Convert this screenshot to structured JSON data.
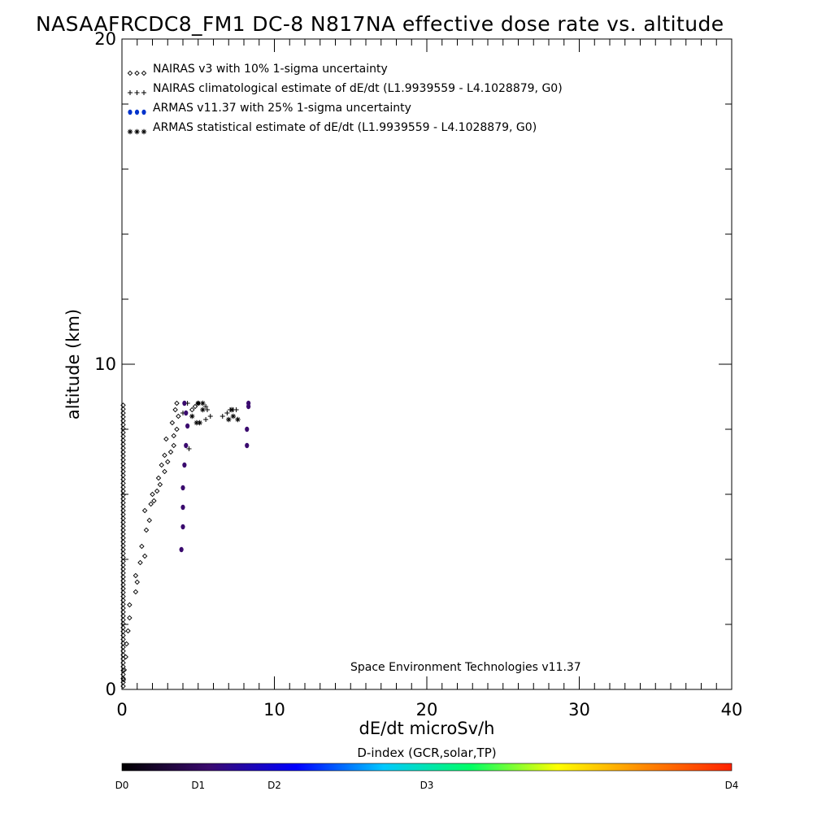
{
  "chart_data": {
    "type": "scatter",
    "title": "NASAAFRCDC8_FM1 DC-8   N817NA effective dose rate vs. altitude",
    "xlabel": "dE/dt microSv/h",
    "ylabel": "altitude (km)",
    "xlim": [
      0,
      40
    ],
    "ylim": [
      0,
      20
    ],
    "x_ticks": [
      "0",
      "10",
      "20",
      "30",
      "40"
    ],
    "y_ticks": [
      "0",
      "10",
      "20"
    ],
    "legend_position": "top-left",
    "grid": false,
    "footer": "Space Environment Technologies v11.37",
    "series": [
      {
        "name": "NAIRAS v3 with 10% 1-sigma uncertainty",
        "marker": "diamond",
        "color": "#000000",
        "points": [
          [
            0.1,
            0.3
          ],
          [
            0.15,
            0.6
          ],
          [
            0.25,
            1.0
          ],
          [
            0.3,
            1.4
          ],
          [
            0.4,
            1.8
          ],
          [
            0.5,
            2.2
          ],
          [
            0.5,
            2.6
          ],
          [
            0.9,
            3.0
          ],
          [
            1.0,
            3.3
          ],
          [
            0.9,
            3.5
          ],
          [
            1.2,
            3.9
          ],
          [
            1.5,
            4.1
          ],
          [
            1.3,
            4.4
          ],
          [
            1.6,
            4.9
          ],
          [
            1.8,
            5.2
          ],
          [
            1.5,
            5.5
          ],
          [
            1.9,
            5.7
          ],
          [
            2.1,
            5.8
          ],
          [
            2.0,
            6.0
          ],
          [
            2.3,
            6.1
          ],
          [
            2.5,
            6.3
          ],
          [
            2.4,
            6.5
          ],
          [
            2.8,
            6.7
          ],
          [
            2.6,
            6.9
          ],
          [
            3.0,
            7.0
          ],
          [
            2.8,
            7.2
          ],
          [
            3.2,
            7.3
          ],
          [
            3.4,
            7.5
          ],
          [
            2.9,
            7.7
          ],
          [
            3.4,
            7.8
          ],
          [
            3.6,
            8.0
          ],
          [
            3.3,
            8.2
          ],
          [
            3.7,
            8.4
          ],
          [
            3.5,
            8.6
          ],
          [
            3.6,
            8.8
          ],
          [
            4.6,
            8.6
          ],
          [
            4.8,
            8.7
          ],
          [
            5.0,
            8.8
          ]
        ]
      },
      {
        "name": "NAIRAS climatological estimate of dE/dt (L1.9939559 - L4.1028879, G0)",
        "marker": "plus",
        "color": "#000000",
        "points": [
          [
            4.0,
            8.5
          ],
          [
            4.3,
            8.8
          ],
          [
            4.4,
            7.4
          ],
          [
            5.5,
            8.3
          ],
          [
            5.5,
            8.7
          ],
          [
            5.6,
            8.6
          ],
          [
            5.8,
            8.4
          ],
          [
            6.6,
            8.4
          ],
          [
            6.9,
            8.5
          ],
          [
            7.1,
            8.6
          ],
          [
            7.3,
            8.6
          ],
          [
            7.5,
            8.6
          ]
        ]
      },
      {
        "name": "ARMAS v11.37 with 25% 1-sigma uncertainty",
        "marker": "dot",
        "color": "#0033cc",
        "points": [
          [
            3.9,
            4.3
          ],
          [
            4.0,
            5.0
          ],
          [
            4.0,
            5.6
          ],
          [
            4.0,
            6.2
          ],
          [
            4.1,
            6.9
          ],
          [
            4.2,
            7.5
          ],
          [
            4.3,
            8.1
          ],
          [
            4.2,
            8.5
          ],
          [
            4.1,
            8.8
          ],
          [
            8.2,
            7.5
          ],
          [
            8.2,
            8.0
          ],
          [
            8.3,
            8.7
          ],
          [
            8.3,
            8.8
          ]
        ]
      },
      {
        "name": "ARMAS statistical estimate of dE/dt (L1.9939559 - L4.1028879, G0)",
        "marker": "asterisk",
        "color": "#000000",
        "points": [
          [
            4.6,
            8.4
          ],
          [
            4.9,
            8.2
          ],
          [
            5.1,
            8.2
          ],
          [
            5.3,
            8.6
          ],
          [
            5.0,
            8.8
          ],
          [
            5.3,
            8.8
          ],
          [
            7.0,
            8.3
          ],
          [
            7.3,
            8.4
          ],
          [
            7.6,
            8.3
          ],
          [
            7.2,
            8.6
          ]
        ]
      }
    ],
    "colorbar": {
      "title": "D-index (GCR,solar,TP)",
      "labels": [
        {
          "text": "D0",
          "value": 0
        },
        {
          "text": "D1",
          "value": 0.125
        },
        {
          "text": "D2",
          "value": 0.25
        },
        {
          "text": "D3",
          "value": 0.5
        },
        {
          "text": "D4",
          "value": 1.0
        }
      ],
      "colors": [
        "#000000",
        "#3a0a6e",
        "#0000ff",
        "#00c8ff",
        "#00ff66",
        "#ffff00",
        "#ff8800",
        "#ff2200"
      ]
    }
  }
}
